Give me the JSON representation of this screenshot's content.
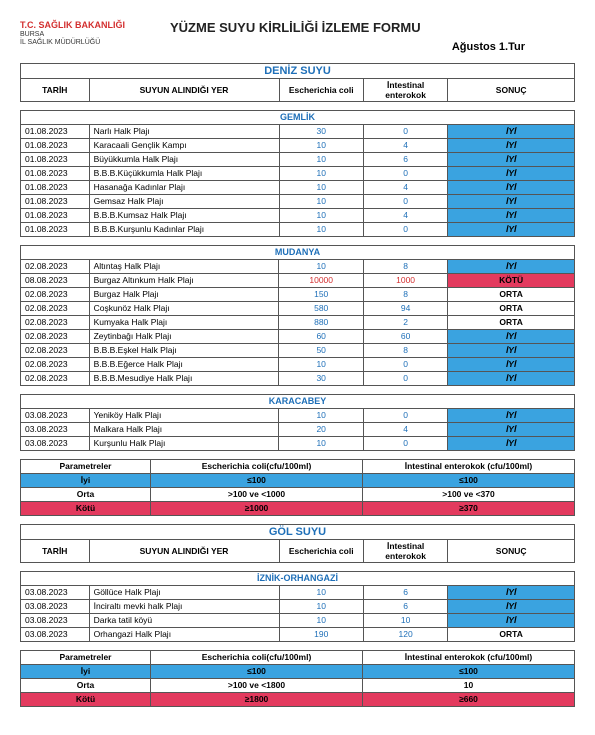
{
  "header": {
    "ministry": "T.C. SAĞLIK BAKANLIĞI",
    "city": "BURSA",
    "dept": "İL SAĞLIK MÜDÜRLÜĞÜ",
    "title": "YÜZME SUYU KİRLİLİĞİ İZLEME FORMU",
    "period": "Ağustos 1.Tur"
  },
  "sections": [
    {
      "name": "DENİZ SUYU",
      "columns": {
        "tarih": "TARİH",
        "yer": "SUYUN ALINDIĞI YER",
        "ec": "Escherichia coli",
        "ie": "İntestinal enterokok",
        "sonuc": "SONUÇ"
      },
      "regions": [
        {
          "name": "GEMLİK",
          "rows": [
            {
              "t": "01.08.2023",
              "y": "Narlı Halk Plajı",
              "e": "30",
              "i": "0",
              "r": "İYİ",
              "cls": "iyi"
            },
            {
              "t": "01.08.2023",
              "y": "Karacaali Gençlik Kampı",
              "e": "10",
              "i": "4",
              "r": "İYİ",
              "cls": "iyi"
            },
            {
              "t": "01.08.2023",
              "y": "Büyükkumla Halk Plajı",
              "e": "10",
              "i": "6",
              "r": "İYİ",
              "cls": "iyi"
            },
            {
              "t": "01.08.2023",
              "y": "B.B.B.Küçükkumla Halk Plajı",
              "e": "10",
              "i": "0",
              "r": "İYİ",
              "cls": "iyi"
            },
            {
              "t": "01.08.2023",
              "y": "Hasanağa Kadınlar Plajı",
              "e": "10",
              "i": "4",
              "r": "İYİ",
              "cls": "iyi"
            },
            {
              "t": "01.08.2023",
              "y": "Gemsaz Halk Plajı",
              "e": "10",
              "i": "0",
              "r": "İYİ",
              "cls": "iyi"
            },
            {
              "t": "01.08.2023",
              "y": "B.B.B.Kumsaz Halk Plajı",
              "e": "10",
              "i": "4",
              "r": "İYİ",
              "cls": "iyi"
            },
            {
              "t": "01.08.2023",
              "y": "B.B.B.Kurşunlu Kadınlar Plajı",
              "e": "10",
              "i": "0",
              "r": "İYİ",
              "cls": "iyi"
            }
          ]
        },
        {
          "name": "MUDANYA",
          "rows": [
            {
              "t": "02.08.2023",
              "y": "Altıntaş Halk Plajı",
              "e": "10",
              "i": "8",
              "r": "İYİ",
              "cls": "iyi"
            },
            {
              "t": "08.08.2023",
              "y": "Burgaz Altınkum Halk Plajı",
              "e": "10000",
              "i": "1000",
              "r": "KÖTÜ",
              "cls": "kotu",
              "red": true
            },
            {
              "t": "02.08.2023",
              "y": "Burgaz Halk Plajı",
              "e": "150",
              "i": "8",
              "r": "ORTA",
              "cls": "orta"
            },
            {
              "t": "02.08.2023",
              "y": "Coşkunöz Halk Plajı",
              "e": "580",
              "i": "94",
              "r": "ORTA",
              "cls": "orta"
            },
            {
              "t": "02.08.2023",
              "y": "Kumyaka Halk Plajı",
              "e": "880",
              "i": "2",
              "r": "ORTA",
              "cls": "orta"
            },
            {
              "t": "02.08.2023",
              "y": "Zeytinbağı Halk Plajı",
              "e": "60",
              "i": "60",
              "r": "İYİ",
              "cls": "iyi"
            },
            {
              "t": "02.08.2023",
              "y": "B.B.B.Eşkel Halk Plajı",
              "e": "50",
              "i": "8",
              "r": "İYİ",
              "cls": "iyi"
            },
            {
              "t": "02.08.2023",
              "y": "B.B.B.Eğerce Halk Plajı",
              "e": "10",
              "i": "0",
              "r": "İYİ",
              "cls": "iyi"
            },
            {
              "t": "02.08.2023",
              "y": "B.B.B.Mesudiye Halk Plajı",
              "e": "30",
              "i": "0",
              "r": "İYİ",
              "cls": "iyi"
            }
          ]
        },
        {
          "name": "KARACABEY",
          "rows": [
            {
              "t": "03.08.2023",
              "y": "Yeniköy Halk Plajı",
              "e": "10",
              "i": "0",
              "r": "İYİ",
              "cls": "iyi"
            },
            {
              "t": "03.08.2023",
              "y": "Malkara Halk Plajı",
              "e": "20",
              "i": "4",
              "r": "İYİ",
              "cls": "iyi"
            },
            {
              "t": "03.08.2023",
              "y": "Kurşunlu Halk Plajı",
              "e": "10",
              "i": "0",
              "r": "İYİ",
              "cls": "iyi"
            }
          ]
        }
      ],
      "params": {
        "header": {
          "p": "Parametreler",
          "ec": "Escherichia coli(cfu/100ml)",
          "ie": "İntestinal enterokok (cfu/100ml)"
        },
        "rows": [
          {
            "label": "İyi",
            "ec": "≤100",
            "ie": "≤100",
            "cls": "iyi"
          },
          {
            "label": "Orta",
            "ec": ">100 ve <1000",
            "ie": ">100 ve <370",
            "cls": "orta"
          },
          {
            "label": "Kötü",
            "ec": "≥1000",
            "ie": "≥370",
            "cls": "kotu"
          }
        ]
      }
    },
    {
      "name": "GÖL SUYU",
      "columns": {
        "tarih": "TARİH",
        "yer": "SUYUN ALINDIĞI YER",
        "ec": "Escherichia coli",
        "ie": "İntestinal enterokok",
        "sonuc": "SONUÇ"
      },
      "regions": [
        {
          "name": "İZNİK-ORHANGAZİ",
          "rows": [
            {
              "t": "03.08.2023",
              "y": "Göllüce Halk Plajı",
              "e": "10",
              "i": "6",
              "r": "İYİ",
              "cls": "iyi"
            },
            {
              "t": "03.08.2023",
              "y": "İnciraltı mevki halk Plajı",
              "e": "10",
              "i": "6",
              "r": "İYİ",
              "cls": "iyi"
            },
            {
              "t": "03.08.2023",
              "y": "Darka tatil köyü",
              "e": "10",
              "i": "10",
              "r": "İYİ",
              "cls": "iyi"
            },
            {
              "t": "03.08.2023",
              "y": "Orhangazi Halk Plajı",
              "e": "190",
              "i": "120",
              "r": "ORTA",
              "cls": "orta"
            }
          ]
        }
      ],
      "params": {
        "header": {
          "p": "Parametreler",
          "ec": "Escherichia coli(cfu/100ml)",
          "ie": "İntestinal enterokok (cfu/100ml)"
        },
        "rows": [
          {
            "label": "İyi",
            "ec": "≤100",
            "ie": "≤100",
            "cls": "iyi"
          },
          {
            "label": "Orta",
            "ec": ">100 ve <1800",
            "ie": "10",
            "cls": "orta"
          },
          {
            "label": "Kötü",
            "ec": "≥1800",
            "ie": "≥660",
            "cls": "kotu"
          }
        ]
      }
    }
  ]
}
